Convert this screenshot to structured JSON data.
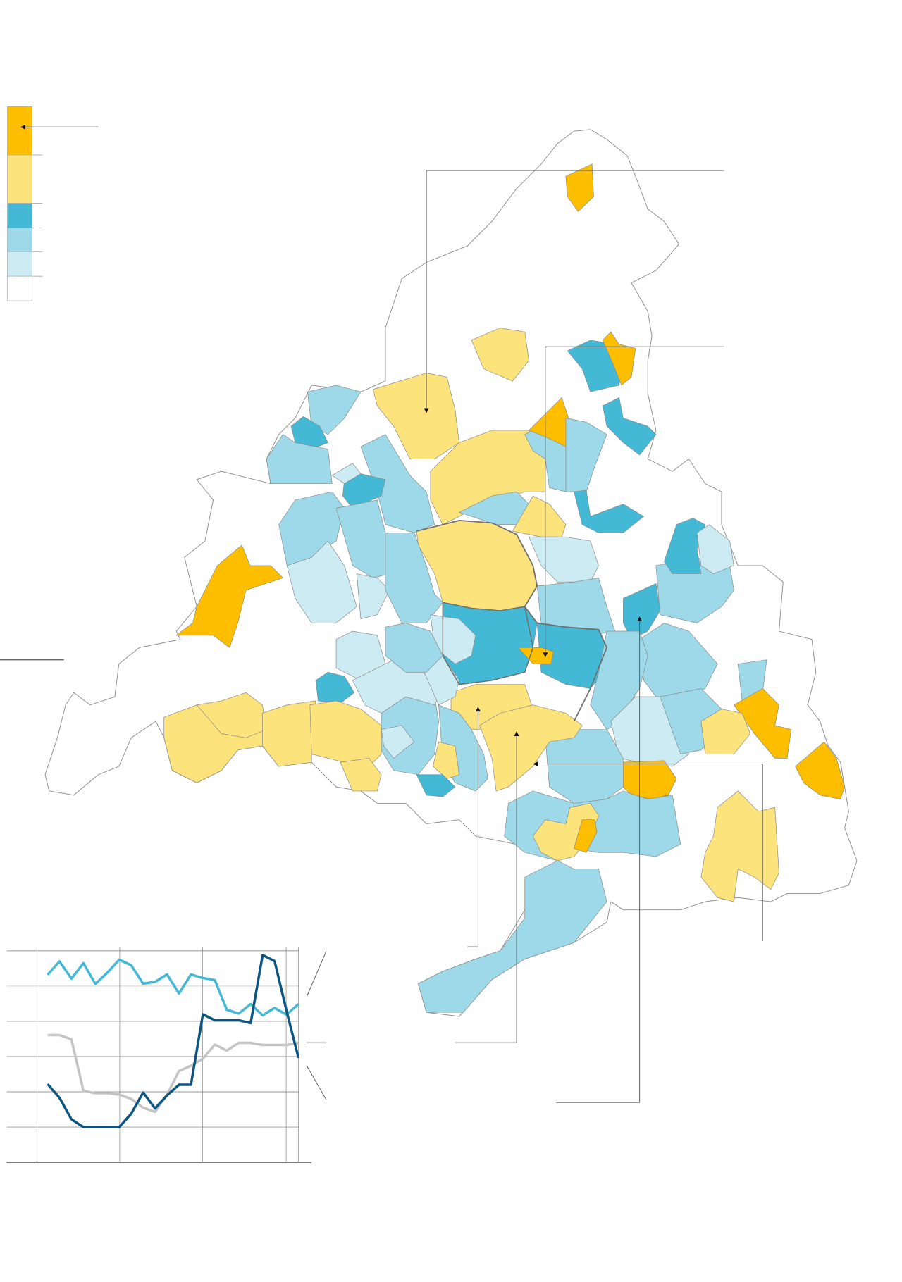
{
  "legend": {
    "colors": [
      "#FDBE00",
      "#FDE37C",
      "#43B9D6",
      "#9DD9E8",
      "#CDEBF2",
      "#FFFFFF"
    ]
  },
  "map": {
    "border_color": "#8a8a8a",
    "highlight_border_color": "#6e6e6e"
  },
  "chart_data": {
    "type": "line",
    "title": "",
    "xlabel": "",
    "ylabel": "",
    "x": [
      1,
      2,
      3,
      4,
      5,
      6,
      7,
      8,
      9,
      10,
      11,
      12,
      13,
      14,
      15,
      16,
      17,
      18,
      19,
      20,
      21,
      22
    ],
    "ylim": [
      0,
      6
    ],
    "grid": true,
    "series": [
      {
        "color": "#43B9D6",
        "values": [
          5.32,
          5.7,
          5.21,
          5.65,
          5.06,
          5.38,
          5.75,
          5.59,
          5.07,
          5.12,
          5.33,
          4.79,
          5.33,
          5.23,
          5.17,
          4.33,
          4.22,
          4.49,
          4.17,
          4.38,
          4.19,
          4.49
        ]
      },
      {
        "color": "#C4C4C4",
        "values": [
          3.61,
          3.61,
          3.49,
          2.03,
          1.96,
          1.96,
          1.92,
          1.8,
          1.55,
          1.43,
          1.92,
          2.59,
          2.74,
          2.94,
          3.34,
          3.17,
          3.39,
          3.39,
          3.33,
          3.33,
          3.33,
          3.39
        ]
      },
      {
        "color": "#0B5580",
        "values": [
          2.22,
          1.83,
          1.22,
          1.0,
          1.0,
          1.0,
          1.0,
          1.38,
          1.98,
          1.53,
          1.9,
          2.2,
          2.2,
          4.2,
          4.03,
          4.03,
          4.03,
          3.95,
          5.88,
          5.71,
          4.3,
          2.96
        ]
      }
    ]
  }
}
